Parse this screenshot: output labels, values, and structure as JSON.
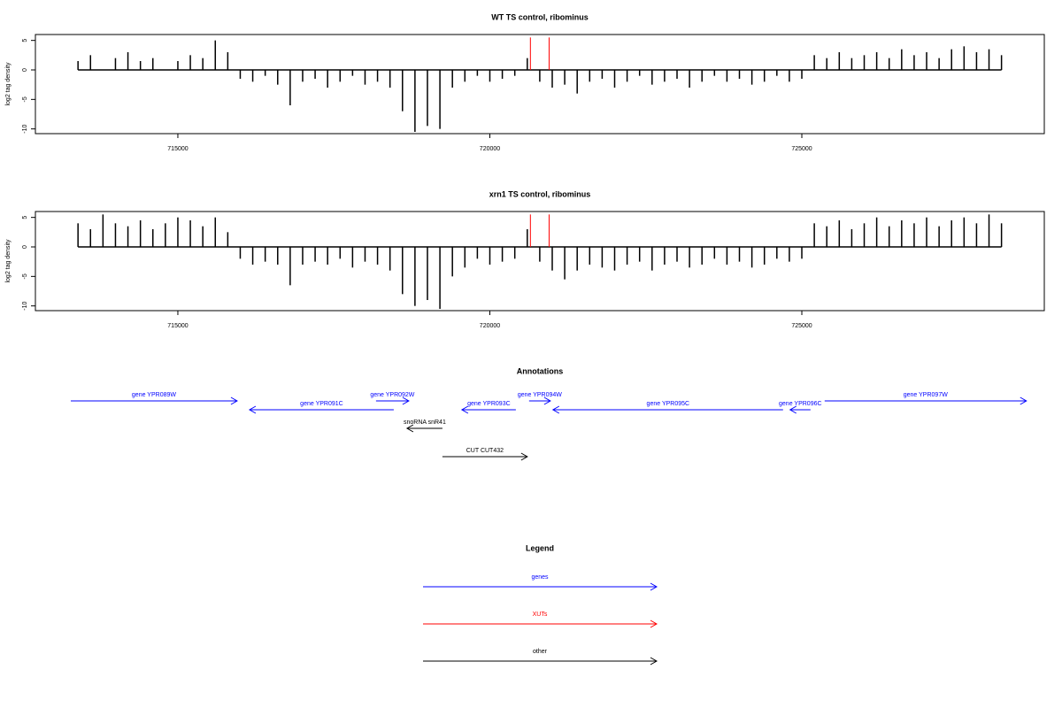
{
  "chart_data": [
    {
      "type": "bar",
      "title": "WT TS control, ribominus",
      "y_label": "log2 tag density",
      "xlim": [
        712717,
        728886
      ],
      "ylim": [
        -10.8,
        6
      ],
      "xticks": [
        715000,
        720000,
        725000
      ],
      "yticks": [
        -10,
        -5,
        0,
        5
      ],
      "series": [
        {
          "color": "#000000",
          "x": [
            713400,
            713600,
            713800,
            714000,
            714200,
            714400,
            714600,
            714800,
            715000,
            715200,
            715400,
            715600,
            715800,
            716000,
            716200,
            716400,
            716600,
            716800,
            717000,
            717200,
            717400,
            717600,
            717800,
            718000,
            718200,
            718400,
            718600,
            718800,
            719000,
            719200,
            719400,
            719600,
            719800,
            720000,
            720200,
            720400,
            720600,
            720800,
            721000,
            721200,
            721400,
            721600,
            721800,
            722000,
            722200,
            722400,
            722600,
            722800,
            723000,
            723200,
            723400,
            723600,
            723800,
            724000,
            724200,
            724400,
            724600,
            724800,
            725000,
            725200,
            725400,
            725600,
            725800,
            726000,
            726200,
            726400,
            726600,
            726800,
            727000,
            727200,
            727400,
            727600,
            727800,
            728000,
            728200
          ],
          "values": [
            1.5,
            2.5,
            0,
            2,
            3,
            1.5,
            2,
            0,
            1.5,
            2.5,
            2,
            5,
            3,
            -1.5,
            -2,
            -1,
            -2.5,
            -6,
            -2,
            -1.5,
            -3,
            -2,
            -1,
            -2.5,
            -2,
            -3,
            -7,
            -10.5,
            -9.5,
            -10,
            -3,
            -2,
            -1,
            -2,
            -1.5,
            -1,
            2,
            -2,
            -3,
            -2.5,
            -4,
            -2,
            -1.5,
            -3,
            -2,
            -1,
            -2.5,
            -2,
            -1.5,
            -3,
            -2,
            -1,
            -2,
            -1.5,
            -2.5,
            -2,
            -1,
            -2,
            -1.5,
            2.5,
            2,
            3,
            2,
            2.5,
            3,
            2,
            3.5,
            2.5,
            3,
            2,
            3.5,
            4,
            3,
            3.5,
            2.5
          ]
        },
        {
          "color": "#ff0000",
          "x": [
            720650,
            720950
          ],
          "values": [
            5.5,
            5.5
          ]
        }
      ]
    },
    {
      "type": "bar",
      "title": "xrn1 TS control, ribominus",
      "y_label": "log2 tag density",
      "xlim": [
        712717,
        728886
      ],
      "ylim": [
        -10.8,
        6
      ],
      "xticks": [
        715000,
        720000,
        725000
      ],
      "yticks": [
        -10,
        -5,
        0,
        5
      ],
      "series": [
        {
          "color": "#000000",
          "x": [
            713400,
            713600,
            713800,
            714000,
            714200,
            714400,
            714600,
            714800,
            715000,
            715200,
            715400,
            715600,
            715800,
            716000,
            716200,
            716400,
            716600,
            716800,
            717000,
            717200,
            717400,
            717600,
            717800,
            718000,
            718200,
            718400,
            718600,
            718800,
            719000,
            719200,
            719400,
            719600,
            719800,
            720000,
            720200,
            720400,
            720600,
            720800,
            721000,
            721200,
            721400,
            721600,
            721800,
            722000,
            722200,
            722400,
            722600,
            722800,
            723000,
            723200,
            723400,
            723600,
            723800,
            724000,
            724200,
            724400,
            724600,
            724800,
            725000,
            725200,
            725400,
            725600,
            725800,
            726000,
            726200,
            726400,
            726600,
            726800,
            727000,
            727200,
            727400,
            727600,
            727800,
            728000,
            728200
          ],
          "values": [
            4,
            3,
            5.5,
            4,
            3.5,
            4.5,
            3,
            4,
            5,
            4.5,
            3.5,
            5,
            2.5,
            -2,
            -3,
            -2.5,
            -3,
            -6.5,
            -3,
            -2.5,
            -3,
            -2,
            -3.5,
            -2.5,
            -3,
            -4,
            -8,
            -10,
            -9,
            -10.5,
            -5,
            -3.5,
            -2,
            -3,
            -2.5,
            -2,
            3,
            -2.5,
            -4,
            -5.5,
            -4,
            -3,
            -3.5,
            -4,
            -3,
            -2.5,
            -4,
            -3,
            -2.5,
            -3.5,
            -3,
            -2,
            -3,
            -2.5,
            -3.5,
            -3,
            -2,
            -2.5,
            -2,
            4,
            3.5,
            4.5,
            3,
            4,
            5,
            3.5,
            4.5,
            4,
            5,
            3.5,
            4.5,
            5,
            4,
            5.5,
            4
          ]
        },
        {
          "color": "#ff0000",
          "x": [
            720650,
            720950
          ],
          "values": [
            5.5,
            5.5
          ]
        }
      ]
    }
  ],
  "annotations": {
    "title": "Annotations",
    "xlim": [
      712717,
      728886
    ],
    "features": [
      {
        "label": "gene YPR089W",
        "start": 713284,
        "end": 715950,
        "strand": "+",
        "color": "#0000ff"
      },
      {
        "label": "gene YPR091C",
        "start": 716149,
        "end": 718460,
        "strand": "-",
        "color": "#0000ff"
      },
      {
        "label": "gene YPR092W",
        "start": 718176,
        "end": 718701,
        "strand": "+",
        "color": "#0000ff"
      },
      {
        "label": "gene YPR093C",
        "start": 719552,
        "end": 720417,
        "strand": "-",
        "color": "#0000ff"
      },
      {
        "label": "gene YPR094W",
        "start": 720629,
        "end": 720970,
        "strand": "+",
        "color": "#0000ff"
      },
      {
        "label": "gene YPR095C",
        "start": 721012,
        "end": 724699,
        "strand": "-",
        "color": "#0000ff"
      },
      {
        "label": "gene YPR096C",
        "start": 724812,
        "end": 725139,
        "strand": "-",
        "color": "#0000ff"
      },
      {
        "label": "gene YPR097W",
        "start": 725366,
        "end": 728599,
        "strand": "+",
        "color": "#0000ff"
      },
      {
        "label": "snoRNA snR41",
        "start": 718673,
        "end": 719240,
        "strand": "-",
        "color": "#000000"
      },
      {
        "label": "CUT CUT432",
        "start": 719240,
        "end": 720601,
        "strand": "+",
        "color": "#000000"
      }
    ]
  },
  "legend": {
    "title": "Legend",
    "entries": [
      {
        "label": "genes",
        "color": "#0000ff"
      },
      {
        "label": "XUTs",
        "color": "#ff0000"
      },
      {
        "label": "other",
        "color": "#000000"
      }
    ]
  }
}
